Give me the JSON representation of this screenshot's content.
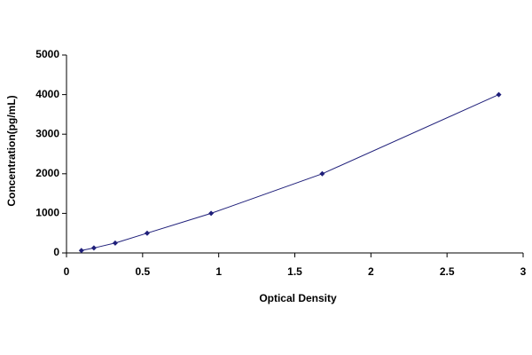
{
  "chart_data": {
    "type": "line",
    "x_label": "Optical Density",
    "y_label": "Concentration(pg/mL)",
    "series": [
      {
        "x": [
          0.098,
          0.18,
          0.32,
          0.53,
          0.95,
          1.68,
          2.84
        ],
        "values": [
          62.5,
          125,
          250,
          500,
          1000,
          2000,
          4000
        ],
        "color": "#1f1f7a"
      }
    ],
    "xlim": [
      0,
      3
    ],
    "xticks": [
      0,
      0.5,
      1,
      1.5,
      2,
      2.5,
      3
    ],
    "ylim": [
      0,
      5000
    ],
    "yticks": [
      0,
      1000,
      2000,
      3000,
      4000,
      5000
    ],
    "grid": false,
    "markers": true
  }
}
